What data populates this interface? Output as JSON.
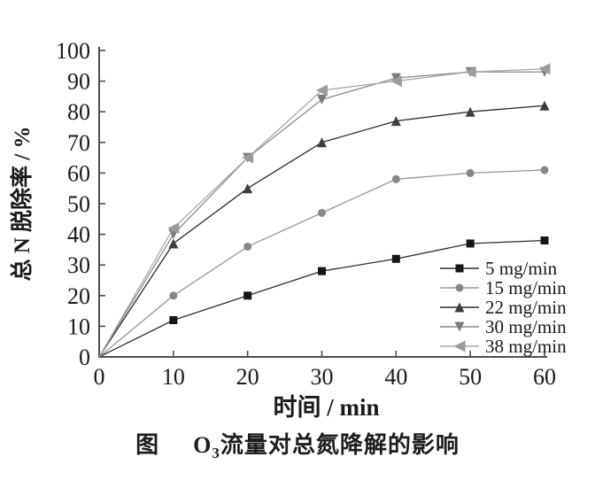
{
  "figure": {
    "caption": {
      "fig_label": "图",
      "formula_base": "O",
      "formula_sub": "3",
      "text": "流量对总氮降解的影响"
    }
  },
  "chart_data": {
    "type": "line",
    "title": "图 O3流量对总氮降解的影响",
    "xlabel": "时间 / min",
    "ylabel": "总 N 脱除率 / %",
    "xlim": [
      0,
      60
    ],
    "ylim": [
      0,
      100
    ],
    "x_ticks": [
      0,
      10,
      20,
      30,
      40,
      50,
      60
    ],
    "y_ticks": [
      0,
      10,
      20,
      30,
      40,
      50,
      60,
      70,
      80,
      90,
      100
    ],
    "grid": false,
    "legend_position": "inside lower right",
    "x": [
      0,
      10,
      20,
      30,
      40,
      50,
      60
    ],
    "series": [
      {
        "name": "5 mg/min",
        "marker": "square",
        "marker_color": "#161616",
        "line_color": "#2e2e2e",
        "values": [
          0,
          12,
          20,
          28,
          32,
          37,
          38
        ]
      },
      {
        "name": "15 mg/min",
        "marker": "circle",
        "marker_color": "#878787",
        "line_color": "#979797",
        "values": [
          0,
          20,
          36,
          47,
          58,
          60,
          61
        ]
      },
      {
        "name": "22 mg/min",
        "marker": "triangle-up",
        "marker_color": "#3d3d3d",
        "line_color": "#2c2c2c",
        "values": [
          0,
          37,
          55,
          70,
          77,
          80,
          82
        ]
      },
      {
        "name": "30 mg/min",
        "marker": "triangle-down",
        "marker_color": "#7b7b7b",
        "line_color": "#8b8b8b",
        "values": [
          0,
          40,
          65,
          84,
          91,
          93,
          93
        ]
      },
      {
        "name": "38 mg/min",
        "marker": "triangle-left",
        "marker_color": "#9c9c9c",
        "line_color": "#a8a8a8",
        "values": [
          0,
          42,
          65,
          87,
          90,
          93,
          94
        ]
      }
    ]
  },
  "colors": {
    "background": "#ffffff",
    "axis": "#4f4f4f",
    "tick_text": "#1a1a1a"
  }
}
